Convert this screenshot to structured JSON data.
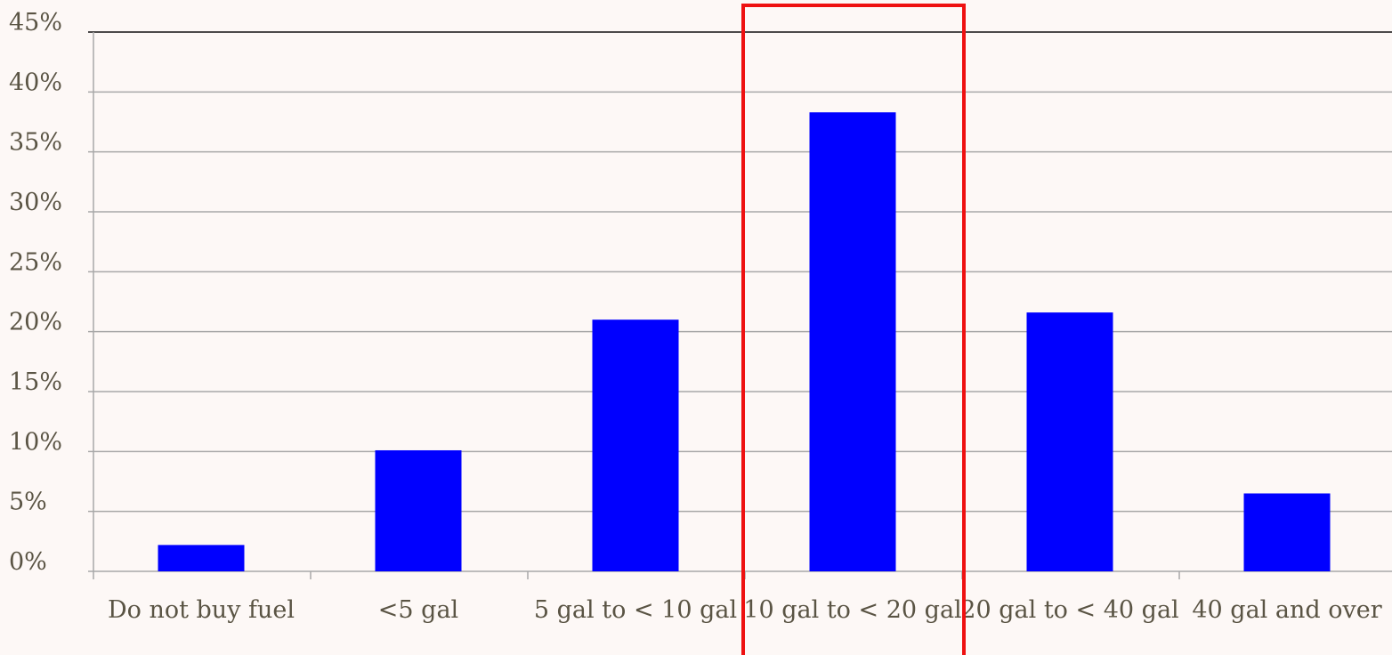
{
  "chart_data": {
    "type": "bar",
    "title": "",
    "xlabel": "",
    "ylabel": "",
    "categories": [
      "Do not buy fuel",
      "<5 gal",
      "5 gal to < 10 gal",
      "10 gal to < 20 gal",
      "20 gal to < 40 gal",
      "40 gal and over"
    ],
    "values": [
      2.2,
      10.1,
      21.0,
      38.3,
      21.6,
      6.5
    ],
    "ylim": [
      0,
      45
    ],
    "yticks": [
      "0%",
      "5%",
      "10%",
      "15%",
      "20%",
      "25%",
      "30%",
      "35%",
      "40%",
      "45%"
    ],
    "highlighted_category_index": 3,
    "grid": true,
    "legend": "none",
    "colors": {
      "bar": "#0000ff",
      "highlight_box": "#ee1111",
      "gridline": "#a8a8a8",
      "text": "#5a5444",
      "background": "#fdf8f6"
    }
  }
}
